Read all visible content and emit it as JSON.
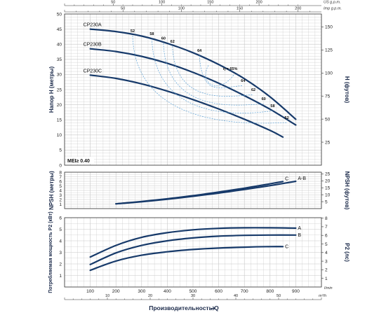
{
  "chart_data": [
    {
      "panel": "head",
      "type": "line",
      "ylabel": "Напор H (метры)",
      "y2label": "H (футов)",
      "ylim": [
        0,
        50
      ],
      "y2lim": [
        0,
        164
      ],
      "xlim": [
        0,
        1000
      ],
      "top_axes": [
        {
          "unit": "US g.p.m.",
          "ticks": [
            0,
            50,
            100,
            150,
            200
          ],
          "per_lmin": 0.26417
        },
        {
          "unit": "Imp g.p.m.",
          "ticks": [
            0,
            50,
            100,
            150,
            200
          ],
          "per_lmin": 0.21997
        }
      ],
      "annotation": "MEI≥ 0.40",
      "series": [
        {
          "name": "CP230A",
          "x": [
            100,
            200,
            300,
            400,
            500,
            600,
            700,
            800,
            900
          ],
          "values": [
            45,
            44.2,
            42.7,
            40.3,
            37.2,
            33.3,
            28.6,
            22.6,
            15.2
          ]
        },
        {
          "name": "CP230B",
          "x": [
            100,
            200,
            300,
            400,
            500,
            600,
            700,
            800,
            900
          ],
          "values": [
            38.5,
            37.6,
            36,
            33.7,
            30.7,
            27.1,
            23,
            18.5,
            13.3
          ]
        },
        {
          "name": "CP230C",
          "x": [
            100,
            200,
            300,
            400,
            500,
            600,
            700,
            800,
            850
          ],
          "values": [
            29.8,
            28.7,
            26.9,
            24.5,
            21.7,
            18.6,
            15.2,
            11.5,
            9.3
          ]
        }
      ],
      "efficiency_labels": [
        {
          "label": "52",
          "x": 265,
          "y": 44
        },
        {
          "label": "58",
          "x": 340,
          "y": 43
        },
        {
          "label": "60",
          "x": 385,
          "y": 41.5
        },
        {
          "label": "62",
          "x": 420,
          "y": 40.5
        },
        {
          "label": "64",
          "x": 525,
          "y": 37.5
        },
        {
          "label": "η = 65%",
          "x": 645,
          "y": 31.5
        },
        {
          "label": "64",
          "x": 695,
          "y": 27.5
        },
        {
          "label": "62",
          "x": 735,
          "y": 24.5
        },
        {
          "label": "60",
          "x": 775,
          "y": 21.5
        },
        {
          "label": "58",
          "x": 810,
          "y": 19.2
        },
        {
          "label": "52",
          "x": 865,
          "y": 15.3
        }
      ]
    },
    {
      "panel": "npsh",
      "type": "line",
      "ylabel": "NPSH (метры)",
      "y2label": "NPSH (футов)",
      "ylim": [
        0,
        8
      ],
      "y2lim": [
        0,
        26.2
      ],
      "xlim": [
        0,
        1000
      ],
      "series": [
        {
          "name": "A-B",
          "x": [
            200,
            300,
            400,
            500,
            600,
            700,
            800,
            900
          ],
          "values": [
            1.05,
            1.5,
            2.05,
            2.7,
            3.4,
            4.2,
            5.05,
            6.0
          ]
        },
        {
          "name": "C",
          "x": [
            200,
            300,
            400,
            500,
            600,
            700,
            800,
            850
          ],
          "values": [
            1.05,
            1.55,
            2.15,
            2.85,
            3.65,
            4.5,
            5.45,
            5.95
          ]
        }
      ]
    },
    {
      "panel": "power",
      "type": "line",
      "ylabel": "Потребляемая мощность P2 (кВт)",
      "y2label": "P2 (лс)",
      "ylim": [
        0,
        6
      ],
      "y2lim": [
        0,
        8.05
      ],
      "xlim": [
        0,
        1000
      ],
      "xlabel": "Производительность Q",
      "x_unit": "l/min",
      "x_ticks": [
        100,
        200,
        300,
        400,
        500,
        600,
        700,
        800,
        900
      ],
      "bottom_axis": {
        "unit": "m³/h",
        "ticks": [
          10,
          20,
          30,
          40,
          50
        ]
      },
      "series": [
        {
          "name": "A",
          "x": [
            100,
            200,
            300,
            400,
            500,
            600,
            700,
            800,
            900
          ],
          "values": [
            2.6,
            3.6,
            4.3,
            4.7,
            4.95,
            5.08,
            5.13,
            5.13,
            5.1
          ]
        },
        {
          "name": "B",
          "x": [
            100,
            200,
            300,
            400,
            500,
            600,
            700,
            800,
            900
          ],
          "values": [
            1.95,
            2.95,
            3.6,
            4.0,
            4.25,
            4.4,
            4.47,
            4.5,
            4.5
          ]
        },
        {
          "name": "C",
          "x": [
            100,
            200,
            300,
            400,
            500,
            600,
            700,
            800,
            850
          ],
          "values": [
            1.45,
            2.25,
            2.75,
            3.05,
            3.25,
            3.37,
            3.45,
            3.5,
            3.5
          ]
        }
      ]
    }
  ],
  "colors": {
    "curve": "#173a6a",
    "grid": "#c7c7c7",
    "eff": "#5ea3d8",
    "axis": "#333333"
  }
}
